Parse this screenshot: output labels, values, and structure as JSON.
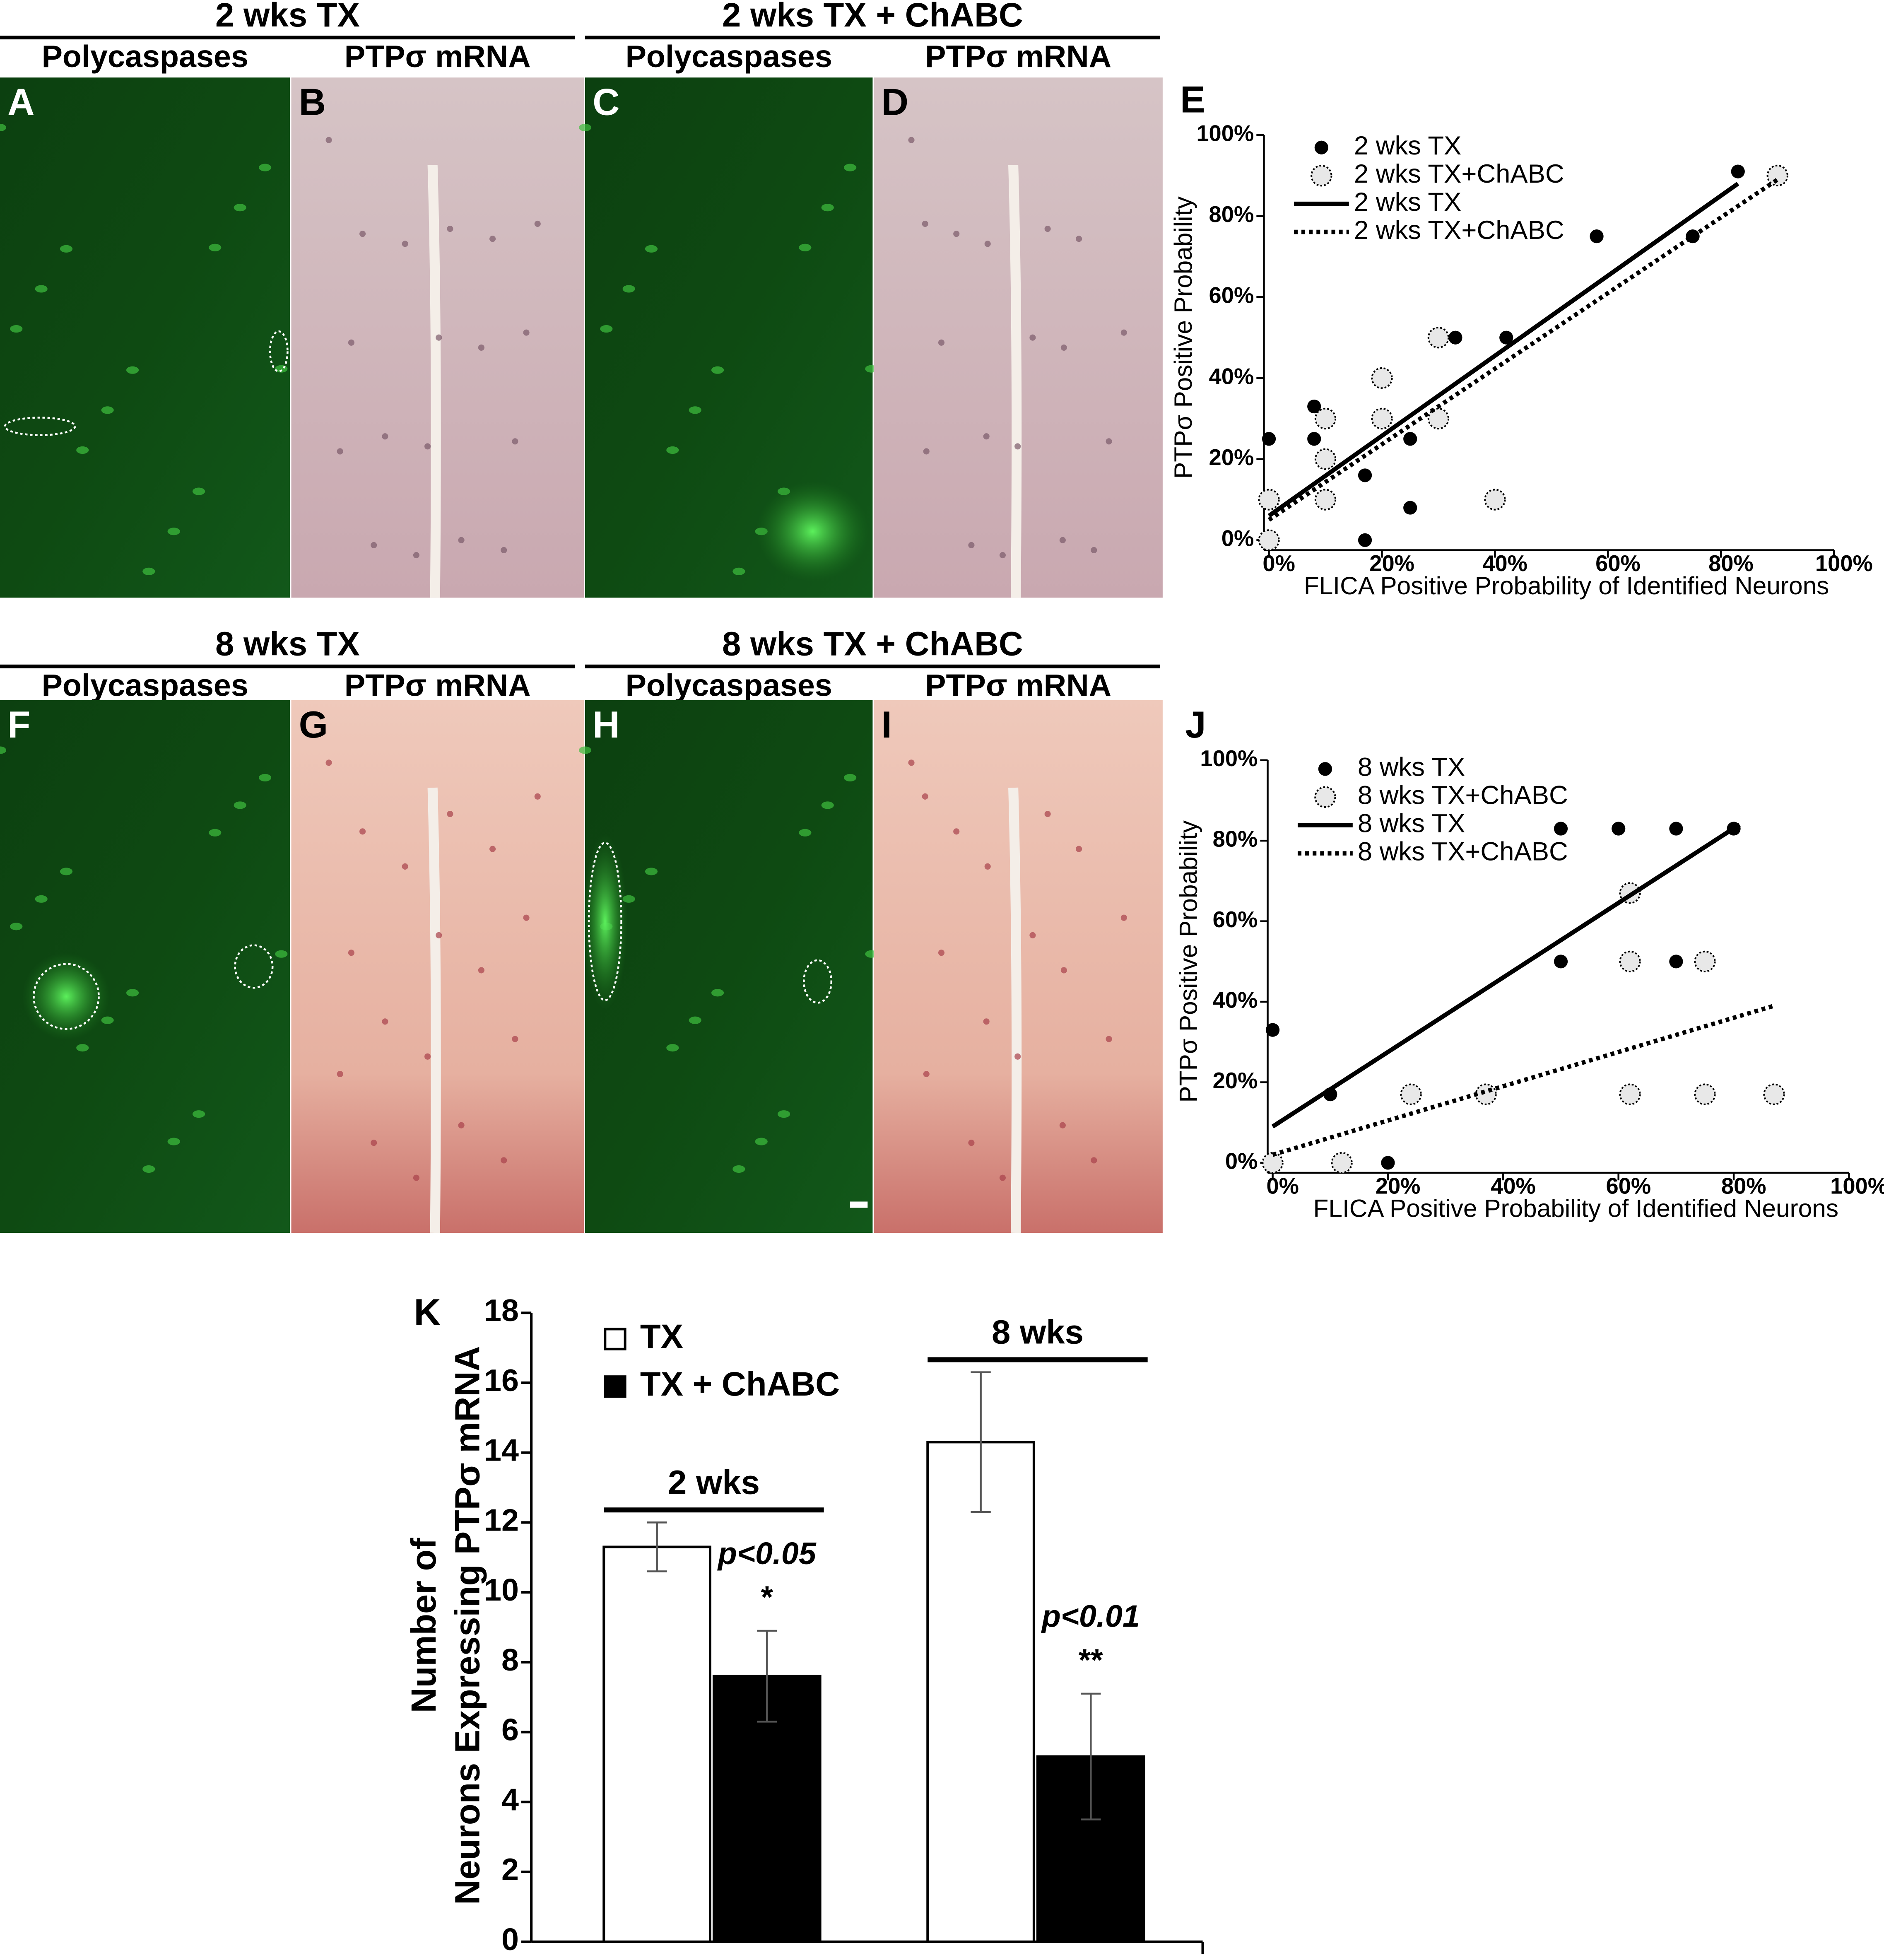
{
  "figure": {
    "rows": [
      {
        "groups": [
          {
            "title": "2 wks TX",
            "panels": [
              {
                "letter": "A",
                "label": "Polycaspases"
              },
              {
                "letter": "B",
                "label": "PTPσ mRNA"
              }
            ]
          },
          {
            "title": "2 wks TX + ChABC",
            "panels": [
              {
                "letter": "C",
                "label": "Polycaspases"
              },
              {
                "letter": "D",
                "label": "PTPσ mRNA"
              }
            ]
          }
        ]
      },
      {
        "groups": [
          {
            "title": "8 wks TX",
            "panels": [
              {
                "letter": "F",
                "label": "Polycaspases"
              },
              {
                "letter": "G",
                "label": "PTPσ mRNA"
              }
            ]
          },
          {
            "title": "8 wks TX + ChABC",
            "panels": [
              {
                "letter": "H",
                "label": "Polycaspases"
              },
              {
                "letter": "I",
                "label": "PTPσ mRNA"
              }
            ]
          }
        ]
      }
    ]
  },
  "chart_data": [
    {
      "type": "scatter",
      "letter": "E",
      "xlabel": "FLICA Positive Probability of Identified Neurons",
      "ylabel": "PTPσ Positive Probability",
      "xlim": [
        0,
        100
      ],
      "ylim": [
        0,
        100
      ],
      "legend": "upper left",
      "xticks": [
        {
          "value": 0,
          "label": "0%"
        },
        {
          "value": 20,
          "label": "20%"
        },
        {
          "value": 40,
          "label": "40%"
        },
        {
          "value": 60,
          "label": "60%"
        },
        {
          "value": 80,
          "label": "80%"
        },
        {
          "value": 100,
          "label": "100%"
        }
      ],
      "yticks": [
        {
          "value": 0,
          "label": "0%"
        },
        {
          "value": 20,
          "label": "20%"
        },
        {
          "value": 40,
          "label": "40%"
        },
        {
          "value": 60,
          "label": "60%"
        },
        {
          "value": 80,
          "label": "80%"
        },
        {
          "value": 100,
          "label": "100%"
        }
      ],
      "series": [
        {
          "name": "2 wks TX",
          "kind": "filled",
          "color": "#000000",
          "x": [
            0,
            8,
            8,
            17,
            17,
            25,
            25,
            33,
            42,
            58,
            75,
            83
          ],
          "values": [
            25,
            33,
            25,
            0,
            16,
            8,
            25,
            50,
            50,
            75,
            75,
            91
          ]
        },
        {
          "name": "2 wks TX+ChABC",
          "kind": "hollow",
          "color": "#000000",
          "x": [
            0,
            0,
            10,
            10,
            10,
            20,
            20,
            30,
            30,
            40,
            90
          ],
          "values": [
            0,
            10,
            10,
            20,
            30,
            30,
            40,
            50,
            30,
            10,
            90
          ]
        },
        {
          "name": "2 wks TX",
          "kind": "solid",
          "color": "#000000",
          "x": [
            0,
            83
          ],
          "values": [
            6,
            88
          ]
        },
        {
          "name": "2 wks TX+ChABC",
          "kind": "dotted",
          "color": "#000000",
          "x": [
            0,
            90
          ],
          "values": [
            5,
            89
          ]
        }
      ]
    },
    {
      "type": "scatter",
      "letter": "J",
      "xlabel": "FLICA Positive Probability of Identified Neurons",
      "ylabel": "PTPσ Positive Probability",
      "xlim": [
        0,
        100
      ],
      "ylim": [
        0,
        100
      ],
      "legend": "upper left",
      "xticks": [
        {
          "value": 0,
          "label": "0%"
        },
        {
          "value": 20,
          "label": "20%"
        },
        {
          "value": 40,
          "label": "40%"
        },
        {
          "value": 60,
          "label": "60%"
        },
        {
          "value": 80,
          "label": "80%"
        },
        {
          "value": 100,
          "label": "100%"
        }
      ],
      "yticks": [
        {
          "value": 0,
          "label": "0%"
        },
        {
          "value": 20,
          "label": "20%"
        },
        {
          "value": 40,
          "label": "40%"
        },
        {
          "value": 60,
          "label": "60%"
        },
        {
          "value": 80,
          "label": "80%"
        },
        {
          "value": 100,
          "label": "100%"
        }
      ],
      "series": [
        {
          "name": "8 wks TX",
          "kind": "filled",
          "color": "#000000",
          "x": [
            0,
            10,
            20,
            50,
            60,
            70,
            80,
            50,
            70
          ],
          "values": [
            33,
            17,
            0,
            83,
            83,
            83,
            83,
            50,
            50
          ]
        },
        {
          "name": "8 wks TX+ChABC",
          "kind": "hollow",
          "color": "#000000",
          "x": [
            0,
            12,
            24,
            37,
            62,
            62,
            75,
            62,
            75,
            87
          ],
          "values": [
            0,
            0,
            17,
            17,
            67,
            50,
            50,
            17,
            17,
            17
          ]
        },
        {
          "name": "8 wks TX",
          "kind": "solid",
          "color": "#000000",
          "x": [
            0,
            81
          ],
          "values": [
            9,
            84
          ]
        },
        {
          "name": "8 wks TX+ChABC",
          "kind": "dotted",
          "color": "#000000",
          "x": [
            0,
            87
          ],
          "values": [
            2,
            39
          ]
        }
      ]
    },
    {
      "type": "bar",
      "letter": "K",
      "ylabel": [
        "Number of",
        "Neurons Expressing PTPσ mRNA"
      ],
      "categories": [
        "2 wks",
        "8 wks"
      ],
      "ylim": [
        0,
        18
      ],
      "yticks": [
        0,
        2,
        4,
        6,
        8,
        10,
        12,
        14,
        16,
        18
      ],
      "legend": "upper left",
      "series": [
        {
          "name": "TX",
          "color": "#ffffff",
          "values": [
            11.3,
            14.3
          ],
          "errors": [
            0.7,
            2.0
          ]
        },
        {
          "name": "TX + ChABC",
          "color": "#000000",
          "values": [
            7.6,
            5.3
          ],
          "errors": [
            1.3,
            1.8
          ]
        }
      ],
      "annotations": [
        {
          "text": "p<0.05",
          "stars": "*"
        },
        {
          "text": "p<0.01",
          "stars": "**"
        }
      ]
    }
  ]
}
